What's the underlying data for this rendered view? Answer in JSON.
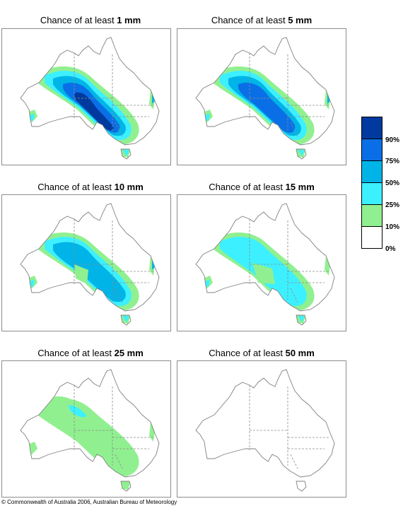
{
  "panels": [
    {
      "prefix": "Chance of at least ",
      "amount": "1 mm",
      "level": 5
    },
    {
      "prefix": "Chance of at least ",
      "amount": "5 mm",
      "level": 4
    },
    {
      "prefix": "Chance of at least ",
      "amount": "10 mm",
      "level": 3
    },
    {
      "prefix": "Chance of at least ",
      "amount": "15 mm",
      "level": 2
    },
    {
      "prefix": "Chance of at least ",
      "amount": "25 mm",
      "level": 1
    },
    {
      "prefix": "Chance of at least ",
      "amount": "50 mm",
      "level": 0
    }
  ],
  "legend": {
    "labels": [
      "90%",
      "75%",
      "50%",
      "25%",
      "10%",
      "0%"
    ],
    "colors": [
      "#003a9e",
      "#0a6fe6",
      "#00b4e8",
      "#3df0ff",
      "#90f090",
      "#ffffff"
    ]
  },
  "map_colors": {
    "outline": "#808080",
    "border": "#8a8a8a",
    "green": "#90f090",
    "cyan": "#3df0ff",
    "sky": "#00b4e8",
    "blue": "#0a6fe6",
    "navy": "#003a9e"
  },
  "copyright": "© Commonwealth of Australia 2006, Australian Bureau of Meteorology"
}
